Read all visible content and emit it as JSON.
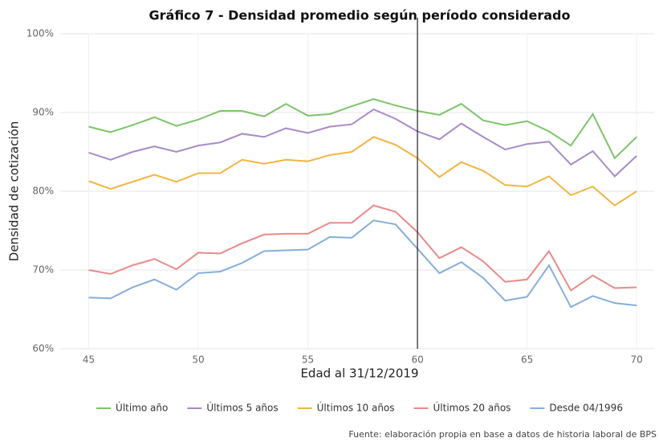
{
  "chart_data": {
    "type": "line",
    "title": "Gráfico 7 - Densidad promedio según período considerado",
    "x_label": "Edad al 31/12/2019",
    "y_label": "Densidad de cotización",
    "source": "Fuente: elaboración propia en base a datos de historia laboral de BPS",
    "x": [
      45,
      46,
      47,
      48,
      49,
      50,
      51,
      52,
      53,
      54,
      55,
      56,
      57,
      58,
      59,
      60,
      61,
      62,
      63,
      64,
      65,
      66,
      67,
      68,
      69,
      70
    ],
    "series": [
      {
        "name": "Último año",
        "color": "#7dc46a",
        "values": [
          88.2,
          87.5,
          88.4,
          89.4,
          88.3,
          89.1,
          90.2,
          90.2,
          89.5,
          91.1,
          89.6,
          89.8,
          90.8,
          91.7,
          90.9,
          90.2,
          89.7,
          91.1,
          89.0,
          88.4,
          88.9,
          87.6,
          85.8,
          89.8,
          84.2,
          86.9
        ]
      },
      {
        "name": "Últimos 5 años",
        "color": "#a98ac7",
        "values": [
          84.9,
          84.0,
          85.0,
          85.7,
          85.0,
          85.8,
          86.2,
          87.3,
          86.9,
          88.0,
          87.4,
          88.2,
          88.5,
          90.4,
          89.2,
          87.6,
          86.6,
          88.6,
          86.9,
          85.3,
          86.0,
          86.3,
          83.4,
          85.1,
          81.9,
          84.5
        ]
      },
      {
        "name": "Últimos 10 años",
        "color": "#f2b544",
        "values": [
          81.3,
          80.3,
          81.2,
          82.1,
          81.2,
          82.3,
          82.3,
          84.0,
          83.5,
          84.0,
          83.8,
          84.6,
          85.0,
          86.9,
          85.9,
          84.2,
          81.8,
          83.7,
          82.6,
          80.8,
          80.6,
          81.9,
          79.5,
          80.6,
          78.2,
          80.0
        ]
      },
      {
        "name": "Últimos 20 años",
        "color": "#e98a8a",
        "values": [
          70.0,
          69.5,
          70.6,
          71.4,
          70.1,
          72.2,
          72.1,
          73.4,
          74.5,
          74.6,
          74.6,
          76.0,
          76.0,
          78.2,
          77.4,
          74.8,
          71.5,
          72.9,
          71.1,
          68.5,
          68.8,
          72.4,
          67.4,
          69.3,
          67.7,
          67.8
        ]
      },
      {
        "name": "Desde 04/1996",
        "color": "#86aedb",
        "values": [
          66.5,
          66.4,
          67.8,
          68.8,
          67.5,
          69.6,
          69.8,
          70.9,
          72.4,
          72.5,
          72.6,
          74.2,
          74.1,
          76.3,
          75.8,
          72.7,
          69.6,
          71.0,
          69.0,
          66.1,
          66.6,
          70.6,
          65.3,
          66.7,
          65.8,
          65.5
        ]
      }
    ],
    "xlim": [
      43.7,
      70.8
    ],
    "xticks": [
      45,
      50,
      55,
      60,
      65,
      70
    ],
    "ylim": [
      60,
      100
    ],
    "yticks": [
      {
        "value": 60,
        "label": "60%"
      },
      {
        "value": 70,
        "label": "70%"
      },
      {
        "value": 80,
        "label": "80%"
      },
      {
        "value": 90,
        "label": "90%"
      },
      {
        "value": 100,
        "label": "100%"
      }
    ],
    "grid": true,
    "vline_x": 60
  }
}
